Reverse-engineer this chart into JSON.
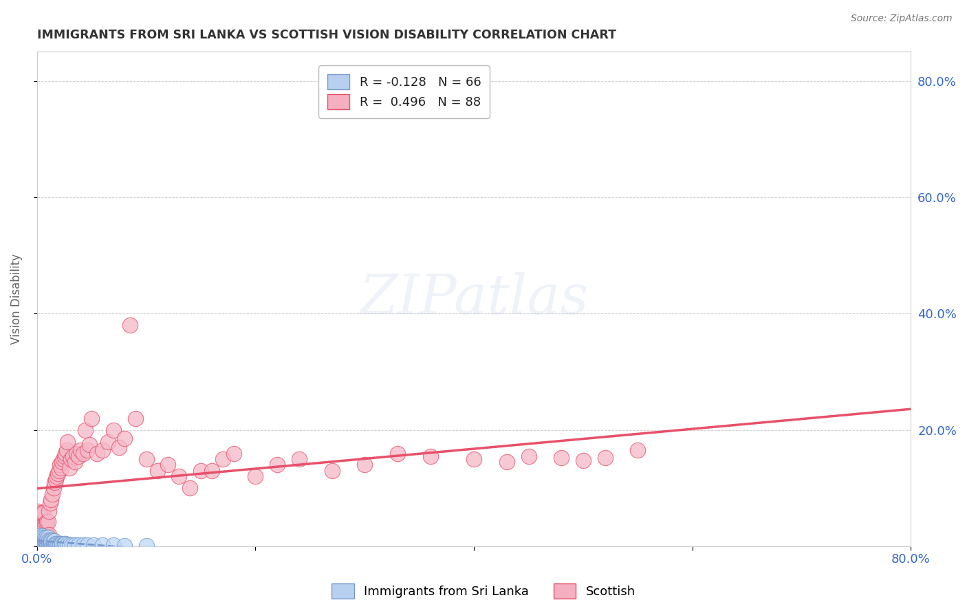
{
  "title": "IMMIGRANTS FROM SRI LANKA VS SCOTTISH VISION DISABILITY CORRELATION CHART",
  "source": "Source: ZipAtlas.com",
  "ylabel": "Vision Disability",
  "right_yticks": [
    "80.0%",
    "60.0%",
    "40.0%",
    "20.0%"
  ],
  "right_ytick_vals": [
    0.8,
    0.6,
    0.4,
    0.2
  ],
  "xlim": [
    0.0,
    0.8
  ],
  "ylim": [
    0.0,
    0.85
  ],
  "legend_row1": "R = -0.128   N = 66",
  "legend_row2": "R =  0.496   N = 88",
  "legend_color1": "#b8d0f0",
  "legend_color2": "#f5b0c0",
  "legend_labels_bottom": [
    "Immigrants from Sri Lanka",
    "Scottish"
  ],
  "sri_lanka_x": [
    0.001,
    0.001,
    0.001,
    0.002,
    0.002,
    0.002,
    0.002,
    0.003,
    0.003,
    0.003,
    0.003,
    0.004,
    0.004,
    0.004,
    0.005,
    0.005,
    0.005,
    0.005,
    0.006,
    0.006,
    0.006,
    0.007,
    0.007,
    0.007,
    0.008,
    0.008,
    0.008,
    0.009,
    0.009,
    0.01,
    0.01,
    0.01,
    0.011,
    0.011,
    0.012,
    0.012,
    0.013,
    0.013,
    0.014,
    0.014,
    0.015,
    0.015,
    0.016,
    0.016,
    0.017,
    0.018,
    0.019,
    0.02,
    0.021,
    0.022,
    0.023,
    0.024,
    0.025,
    0.026,
    0.028,
    0.03,
    0.032,
    0.035,
    0.038,
    0.042,
    0.046,
    0.052,
    0.06,
    0.07,
    0.08,
    0.1
  ],
  "sri_lanka_y": [
    0.005,
    0.01,
    0.015,
    0.003,
    0.007,
    0.012,
    0.018,
    0.004,
    0.009,
    0.014,
    0.019,
    0.005,
    0.011,
    0.016,
    0.004,
    0.008,
    0.013,
    0.018,
    0.005,
    0.01,
    0.015,
    0.004,
    0.009,
    0.014,
    0.005,
    0.01,
    0.016,
    0.005,
    0.012,
    0.005,
    0.01,
    0.015,
    0.005,
    0.011,
    0.005,
    0.011,
    0.005,
    0.01,
    0.005,
    0.011,
    0.004,
    0.01,
    0.004,
    0.01,
    0.005,
    0.005,
    0.005,
    0.004,
    0.004,
    0.005,
    0.005,
    0.004,
    0.005,
    0.005,
    0.004,
    0.003,
    0.003,
    0.003,
    0.003,
    0.003,
    0.002,
    0.002,
    0.002,
    0.002,
    0.001,
    0.001
  ],
  "scottish_x": [
    0.001,
    0.001,
    0.001,
    0.002,
    0.002,
    0.002,
    0.003,
    0.003,
    0.003,
    0.004,
    0.004,
    0.004,
    0.005,
    0.005,
    0.005,
    0.006,
    0.006,
    0.006,
    0.007,
    0.007,
    0.008,
    0.008,
    0.009,
    0.009,
    0.01,
    0.01,
    0.011,
    0.011,
    0.012,
    0.013,
    0.014,
    0.015,
    0.016,
    0.017,
    0.018,
    0.019,
    0.02,
    0.021,
    0.022,
    0.023,
    0.024,
    0.025,
    0.026,
    0.027,
    0.028,
    0.03,
    0.031,
    0.033,
    0.035,
    0.036,
    0.038,
    0.04,
    0.042,
    0.044,
    0.046,
    0.048,
    0.05,
    0.055,
    0.06,
    0.065,
    0.07,
    0.075,
    0.08,
    0.085,
    0.09,
    0.1,
    0.11,
    0.12,
    0.13,
    0.14,
    0.15,
    0.16,
    0.17,
    0.18,
    0.2,
    0.22,
    0.24,
    0.27,
    0.3,
    0.33,
    0.36,
    0.4,
    0.43,
    0.45,
    0.48,
    0.5,
    0.52,
    0.55
  ],
  "scottish_y": [
    0.03,
    0.045,
    0.06,
    0.025,
    0.04,
    0.055,
    0.02,
    0.038,
    0.055,
    0.022,
    0.04,
    0.058,
    0.018,
    0.035,
    0.055,
    0.02,
    0.038,
    0.058,
    0.018,
    0.038,
    0.018,
    0.04,
    0.02,
    0.042,
    0.018,
    0.042,
    0.02,
    0.06,
    0.075,
    0.08,
    0.09,
    0.1,
    0.11,
    0.115,
    0.12,
    0.125,
    0.13,
    0.14,
    0.135,
    0.145,
    0.15,
    0.155,
    0.16,
    0.165,
    0.18,
    0.135,
    0.15,
    0.155,
    0.145,
    0.16,
    0.155,
    0.165,
    0.16,
    0.2,
    0.165,
    0.175,
    0.22,
    0.16,
    0.165,
    0.18,
    0.2,
    0.17,
    0.185,
    0.38,
    0.22,
    0.15,
    0.13,
    0.14,
    0.12,
    0.1,
    0.13,
    0.13,
    0.15,
    0.16,
    0.12,
    0.14,
    0.15,
    0.13,
    0.14,
    0.16,
    0.155,
    0.15,
    0.145,
    0.155,
    0.152,
    0.148,
    0.152,
    0.165
  ],
  "sri_lanka_line_color": "#7799cc",
  "scottish_line_color": "#e8506a",
  "sri_lanka_dot_color": "#c0d8f5",
  "scottish_dot_color": "#f5b8c8",
  "background_color": "#ffffff",
  "grid_color": "#cccccc",
  "title_color": "#333333",
  "axis_label_color": "#3366cc"
}
